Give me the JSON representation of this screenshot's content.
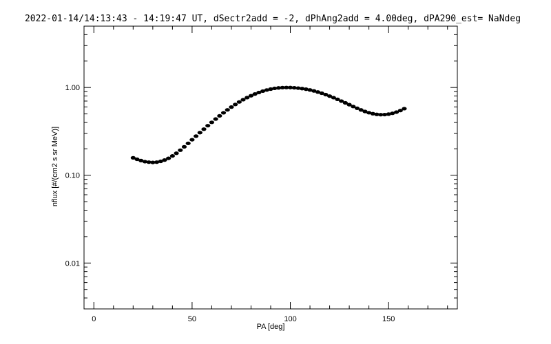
{
  "chart_data": {
    "type": "scatter",
    "title": "2022-01-14/14:13:43 - 14:19:47 UT, dSectr2add = -2, dPhAng2add = 4.00deg, dPA290_est=   NaNdeg",
    "xlabel": "PA [deg]",
    "ylabel": "nflux [#/(cm2 s sr MeV)]",
    "xlim": [
      -5,
      185
    ],
    "ylim": [
      0.003,
      5.0
    ],
    "yscale": "log",
    "xticks": [
      {
        "value": 0,
        "label": "0"
      },
      {
        "value": 50,
        "label": "50"
      },
      {
        "value": 100,
        "label": "100"
      },
      {
        "value": 150,
        "label": "150"
      }
    ],
    "yticks": [
      {
        "value": 0.01,
        "label": "0.01"
      },
      {
        "value": 0.1,
        "label": "0.10"
      },
      {
        "value": 1.0,
        "label": "1.00"
      }
    ],
    "x": [
      20,
      22,
      24,
      26,
      28,
      30,
      32,
      34,
      36,
      38,
      40,
      42,
      44,
      46,
      48,
      50,
      52,
      54,
      56,
      58,
      60,
      62,
      64,
      66,
      68,
      70,
      72,
      74,
      76,
      78,
      80,
      82,
      84,
      86,
      88,
      90,
      92,
      94,
      96,
      98,
      100,
      102,
      104,
      106,
      108,
      110,
      112,
      114,
      116,
      118,
      120,
      122,
      124,
      126,
      128,
      130,
      132,
      134,
      136,
      138,
      140,
      142,
      144,
      146,
      148,
      150,
      152,
      154,
      156,
      158
    ],
    "y": [
      0.158,
      0.152,
      0.147,
      0.143,
      0.141,
      0.14,
      0.141,
      0.144,
      0.149,
      0.156,
      0.166,
      0.178,
      0.193,
      0.211,
      0.231,
      0.254,
      0.279,
      0.306,
      0.335,
      0.367,
      0.401,
      0.437,
      0.475,
      0.515,
      0.556,
      0.598,
      0.641,
      0.684,
      0.726,
      0.767,
      0.806,
      0.843,
      0.877,
      0.909,
      0.936,
      0.959,
      0.977,
      0.989,
      0.997,
      1.0,
      0.999,
      0.993,
      0.984,
      0.972,
      0.956,
      0.937,
      0.914,
      0.888,
      0.86,
      0.83,
      0.798,
      0.766,
      0.733,
      0.7,
      0.668,
      0.637,
      0.607,
      0.58,
      0.555,
      0.533,
      0.516,
      0.503,
      0.494,
      0.49,
      0.491,
      0.497,
      0.508,
      0.524,
      0.546,
      0.574
    ]
  }
}
